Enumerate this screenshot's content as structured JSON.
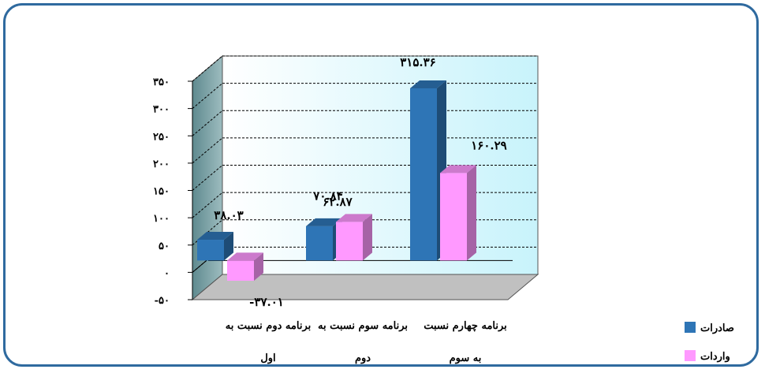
{
  "chart_data": {
    "type": "bar",
    "title": "",
    "xlabel": "",
    "ylabel": "",
    "ylim": [
      -50,
      350
    ],
    "yticks": [
      "-۵۰",
      "۰",
      "۵۰",
      "۱۰۰",
      "۱۵۰",
      "۲۰۰",
      "۲۵۰",
      "۳۰۰",
      "۳۵۰"
    ],
    "ytick_values": [
      -50,
      0,
      50,
      100,
      150,
      200,
      250,
      300,
      350
    ],
    "categories": [
      {
        "line1": "برنامه دوم نسبت به",
        "line2": "اول"
      },
      {
        "line1": "برنامه سوم نسبت به",
        "line2": "دوم"
      },
      {
        "line1": "برنامه چهارم نسبت",
        "line2": "به سوم"
      }
    ],
    "series": [
      {
        "name": "صادرات",
        "color": "#2e75b6",
        "values": [
          38.03,
          62.87,
          315.36
        ],
        "labels": [
          "۳۸.۰۳",
          "۶۲.۸۷",
          "۳۱۵.۳۶"
        ]
      },
      {
        "name": "واردات",
        "color": "#ff99ff",
        "values": [
          -37.01,
          70.84,
          160.29
        ],
        "labels": [
          "-۳۷.۰۱",
          "۷۰.۸۴",
          "۱۶۰.۲۹"
        ]
      }
    ],
    "grid": true,
    "legend_position": "right",
    "style": "3d"
  }
}
